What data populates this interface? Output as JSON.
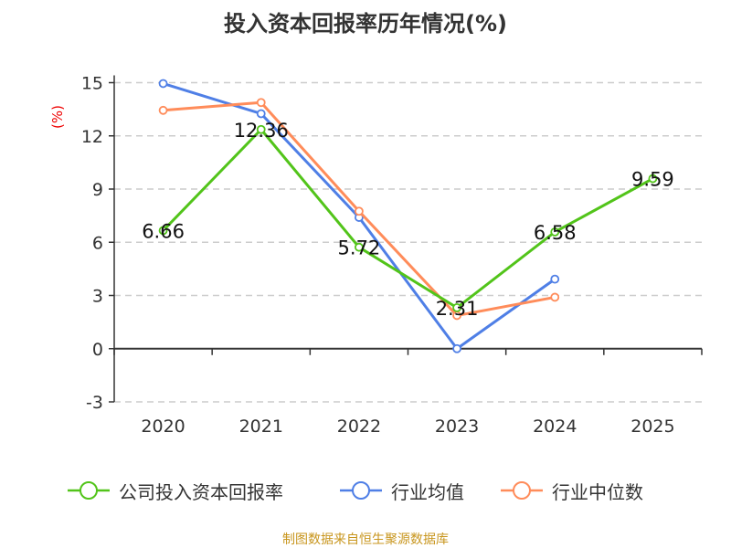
{
  "chart_data": {
    "type": "line",
    "title": "投入资本回报率历年情况(%)",
    "ylabel": "(%)",
    "xlabel": "",
    "categories": [
      "2020",
      "2021",
      "2022",
      "2023",
      "2024",
      "2025"
    ],
    "ylim": [
      -3,
      15
    ],
    "yticks": [
      -3,
      0,
      3,
      6,
      9,
      12,
      15
    ],
    "grid": true,
    "legend_position": "bottom",
    "series": [
      {
        "name": "公司投入资本回报率",
        "color": "#52c41a",
        "values": [
          6.66,
          12.36,
          5.72,
          2.31,
          6.58,
          9.59
        ],
        "labels": [
          "6.66",
          "12.36",
          "5.72",
          "2.31",
          "6.58",
          "9.59"
        ]
      },
      {
        "name": "行业均值",
        "color": "#4f7fe6",
        "values": [
          14.95,
          13.25,
          7.4,
          0.0,
          3.92,
          null
        ]
      },
      {
        "name": "行业中位数",
        "color": "#ff8c5a",
        "values": [
          13.44,
          13.88,
          7.75,
          1.87,
          2.9,
          null
        ]
      }
    ]
  },
  "source": "制图数据来自恒生聚源数据库"
}
